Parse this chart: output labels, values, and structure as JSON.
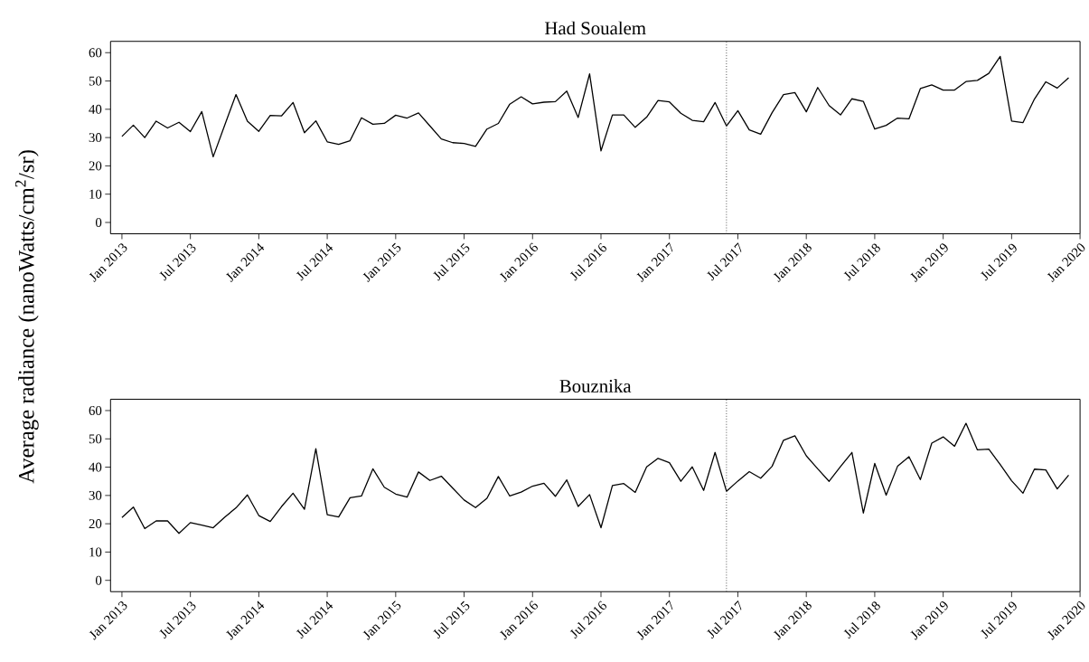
{
  "chart_data": [
    {
      "type": "line",
      "title": "Had Soualem",
      "ylabel": "Average radiance (nanoWatts/cm$^{2}$/sr)",
      "x": [
        "2013-01",
        "2013-02",
        "2013-03",
        "2013-04",
        "2013-05",
        "2013-06",
        "2013-07",
        "2013-08",
        "2013-09",
        "2013-10",
        "2013-11",
        "2013-12",
        "2014-01",
        "2014-02",
        "2014-03",
        "2014-04",
        "2014-05",
        "2014-06",
        "2014-07",
        "2014-08",
        "2014-09",
        "2014-10",
        "2014-11",
        "2014-12",
        "2015-01",
        "2015-02",
        "2015-03",
        "2015-04",
        "2015-05",
        "2015-06",
        "2015-07",
        "2015-08",
        "2015-09",
        "2015-10",
        "2015-11",
        "2015-12",
        "2016-01",
        "2016-02",
        "2016-03",
        "2016-04",
        "2016-05",
        "2016-06",
        "2016-07",
        "2016-08",
        "2016-09",
        "2016-10",
        "2016-11",
        "2016-12",
        "2017-01",
        "2017-02",
        "2017-03",
        "2017-04",
        "2017-05",
        "2017-06",
        "2017-07",
        "2017-08",
        "2017-09",
        "2017-10",
        "2017-11",
        "2017-12",
        "2018-01",
        "2018-02",
        "2018-03",
        "2018-04",
        "2018-05",
        "2018-06",
        "2018-07",
        "2018-08",
        "2018-09",
        "2018-10",
        "2018-11",
        "2018-12",
        "2019-01",
        "2019-02",
        "2019-03",
        "2019-04",
        "2019-05",
        "2019-06",
        "2019-07",
        "2019-08",
        "2019-09",
        "2019-10",
        "2019-11",
        "2019-12"
      ],
      "series": [
        {
          "color": "#000000",
          "values": [
            30.4,
            34.4,
            30.0,
            35.8,
            33.4,
            35.4,
            32.1,
            39.2,
            23.2,
            34.3,
            45.2,
            35.8,
            32.2,
            37.8,
            37.7,
            42.4,
            31.7,
            35.9,
            28.5,
            27.6,
            28.9,
            37.0,
            34.7,
            35.0,
            37.9,
            36.9,
            38.7,
            34.1,
            29.5,
            28.2,
            27.9,
            26.9,
            33.0,
            35.0,
            41.8,
            44.4,
            41.9,
            42.5,
            42.7,
            46.4,
            37.1,
            52.5,
            25.3,
            38.0,
            38.0,
            33.6,
            37.2,
            43.1,
            42.6,
            38.6,
            36.1,
            35.6,
            42.4,
            34.1,
            39.5,
            32.7,
            31.2,
            38.8,
            45.2,
            45.9,
            39.1,
            47.7,
            41.3,
            38.0,
            43.7,
            42.8,
            33.0,
            34.3,
            36.9,
            36.6,
            47.3,
            48.6,
            46.8,
            46.8,
            49.8,
            50.2,
            52.7,
            58.7,
            35.8,
            35.3,
            43.6,
            49.7,
            47.5,
            51.1
          ]
        }
      ],
      "xlim": [
        "2012-12",
        "2020-01"
      ],
      "ylim": [
        -4,
        64
      ],
      "xticks": [
        {
          "value": "2013-01",
          "label": "Jan 2013"
        },
        {
          "value": "2013-07",
          "label": "Jul 2013"
        },
        {
          "value": "2014-01",
          "label": "Jan 2014"
        },
        {
          "value": "2014-07",
          "label": "Jul 2014"
        },
        {
          "value": "2015-01",
          "label": "Jan 2015"
        },
        {
          "value": "2015-07",
          "label": "Jul 2015"
        },
        {
          "value": "2016-01",
          "label": "Jan 2016"
        },
        {
          "value": "2016-07",
          "label": "Jul 2016"
        },
        {
          "value": "2017-01",
          "label": "Jan 2017"
        },
        {
          "value": "2017-07",
          "label": "Jul 2017"
        },
        {
          "value": "2018-01",
          "label": "Jan 2018"
        },
        {
          "value": "2018-07",
          "label": "Jul 2018"
        },
        {
          "value": "2019-01",
          "label": "Jan 2019"
        },
        {
          "value": "2019-07",
          "label": "Jul 2019"
        },
        {
          "value": "2020-01",
          "label": "Jan 2020"
        }
      ],
      "yticks": [
        0,
        10,
        20,
        30,
        40,
        50,
        60
      ],
      "ref_lines": [
        {
          "axis": "x",
          "value": "2017-06",
          "color": "#555555",
          "line_style": "dotted"
        }
      ]
    },
    {
      "type": "line",
      "title": "Bouznika",
      "x": [
        "2013-01",
        "2013-02",
        "2013-03",
        "2013-04",
        "2013-05",
        "2013-06",
        "2013-07",
        "2013-08",
        "2013-09",
        "2013-10",
        "2013-11",
        "2013-12",
        "2014-01",
        "2014-02",
        "2014-03",
        "2014-04",
        "2014-05",
        "2014-06",
        "2014-07",
        "2014-08",
        "2014-09",
        "2014-10",
        "2014-11",
        "2014-12",
        "2015-01",
        "2015-02",
        "2015-03",
        "2015-04",
        "2015-05",
        "2015-06",
        "2015-07",
        "2015-08",
        "2015-09",
        "2015-10",
        "2015-11",
        "2015-12",
        "2016-01",
        "2016-02",
        "2016-03",
        "2016-04",
        "2016-05",
        "2016-06",
        "2016-07",
        "2016-08",
        "2016-09",
        "2016-10",
        "2016-11",
        "2016-12",
        "2017-01",
        "2017-02",
        "2017-03",
        "2017-04",
        "2017-05",
        "2017-06",
        "2017-07",
        "2017-08",
        "2017-09",
        "2017-10",
        "2017-11",
        "2017-12",
        "2018-01",
        "2018-02",
        "2018-03",
        "2018-04",
        "2018-05",
        "2018-06",
        "2018-07",
        "2018-08",
        "2018-09",
        "2018-10",
        "2018-11",
        "2018-12",
        "2019-01",
        "2019-02",
        "2019-03",
        "2019-04",
        "2019-05",
        "2019-06",
        "2019-07",
        "2019-08",
        "2019-09",
        "2019-10",
        "2019-11",
        "2019-12"
      ],
      "series": [
        {
          "color": "#000000",
          "values": [
            22.2,
            25.9,
            18.3,
            21.0,
            21.0,
            16.6,
            20.4,
            19.5,
            18.6,
            22.3,
            25.6,
            30.2,
            22.9,
            20.8,
            26.1,
            30.8,
            25.1,
            46.5,
            23.2,
            22.4,
            29.2,
            29.8,
            39.4,
            32.9,
            30.5,
            29.4,
            38.3,
            35.3,
            36.8,
            32.6,
            28.4,
            25.7,
            29.0,
            36.7,
            29.8,
            31.2,
            33.3,
            34.3,
            29.7,
            35.5,
            26.1,
            30.3,
            18.6,
            33.5,
            34.2,
            31.1,
            40.1,
            43.1,
            41.6,
            35.0,
            40.1,
            31.8,
            45.2,
            31.5,
            35.1,
            38.4,
            36.1,
            40.3,
            49.5,
            51.1,
            44.0,
            39.4,
            35.0,
            40.2,
            45.2,
            23.8,
            41.3,
            30.1,
            40.3,
            43.7,
            35.6,
            48.5,
            50.7,
            47.4,
            55.5,
            46.1,
            46.4,
            40.9,
            35.2,
            30.8,
            39.3,
            39.0,
            32.3,
            37.2
          ]
        }
      ],
      "xlim": [
        "2012-12",
        "2020-01"
      ],
      "ylim": [
        -4,
        64
      ],
      "xticks": [
        {
          "value": "2013-01",
          "label": "Jan 2013"
        },
        {
          "value": "2013-07",
          "label": "Jul 2013"
        },
        {
          "value": "2014-01",
          "label": "Jan 2014"
        },
        {
          "value": "2014-07",
          "label": "Jul 2014"
        },
        {
          "value": "2015-01",
          "label": "Jan 2015"
        },
        {
          "value": "2015-07",
          "label": "Jul 2015"
        },
        {
          "value": "2016-01",
          "label": "Jan 2016"
        },
        {
          "value": "2016-07",
          "label": "Jul 2016"
        },
        {
          "value": "2017-01",
          "label": "Jan 2017"
        },
        {
          "value": "2017-07",
          "label": "Jul 2017"
        },
        {
          "value": "2018-01",
          "label": "Jan 2018"
        },
        {
          "value": "2018-07",
          "label": "Jul 2018"
        },
        {
          "value": "2019-01",
          "label": "Jan 2019"
        },
        {
          "value": "2019-07",
          "label": "Jul 2019"
        },
        {
          "value": "2020-01",
          "label": "Jan 2020"
        }
      ],
      "yticks": [
        0,
        10,
        20,
        30,
        40,
        50,
        60
      ],
      "ref_lines": [
        {
          "axis": "x",
          "value": "2017-06",
          "color": "#555555",
          "line_style": "dotted"
        }
      ]
    }
  ]
}
